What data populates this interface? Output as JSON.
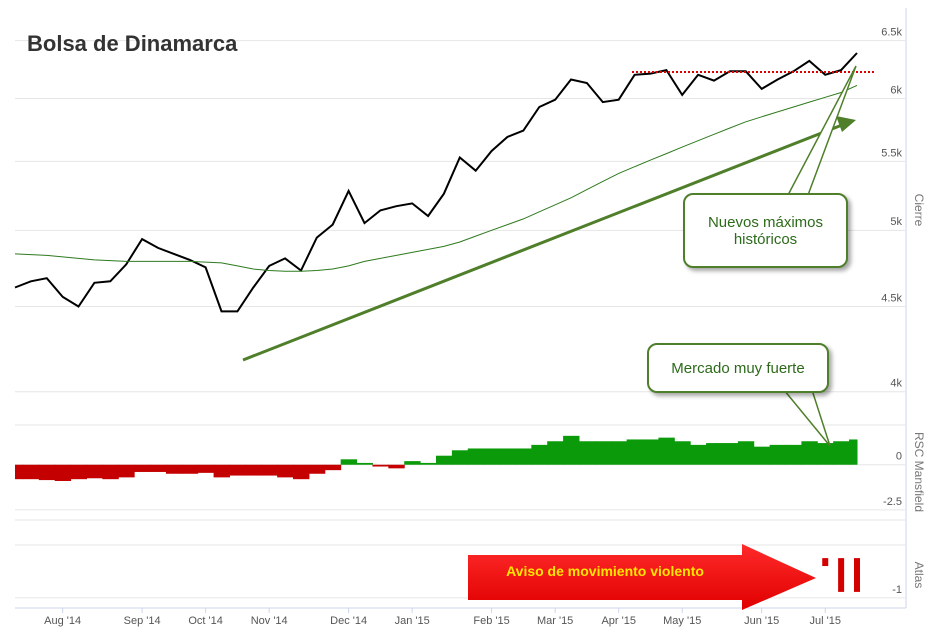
{
  "chart_data": [
    {
      "type": "line",
      "title": "Bolsa de Dinamarca",
      "y_label": "Cierre",
      "log_scale": true,
      "grid": true,
      "categories": [
        null,
        null,
        null,
        "Aug '14",
        null,
        null,
        null,
        null,
        "Sep '14",
        null,
        null,
        null,
        "Oct '14",
        null,
        null,
        null,
        "Nov '14",
        null,
        null,
        null,
        null,
        "Dec '14",
        null,
        null,
        null,
        "Jan '15",
        null,
        null,
        null,
        null,
        "Feb '15",
        null,
        null,
        null,
        "Mar '15",
        null,
        null,
        null,
        "Apr '15",
        null,
        null,
        null,
        "May '15",
        null,
        null,
        null,
        null,
        "Jun '15",
        null,
        null,
        null,
        "Jul '15",
        null,
        null
      ],
      "series": [
        {
          "color": "#000000",
          "values": [
            4620,
            4660,
            4680,
            4560,
            4500,
            4650,
            4660,
            4770,
            4940,
            4880,
            4840,
            4800,
            4750,
            4470,
            4470,
            4620,
            4760,
            4810,
            4730,
            4950,
            5040,
            5280,
            5050,
            5140,
            5170,
            5190,
            5100,
            5260,
            5530,
            5430,
            5580,
            5690,
            5740,
            5930,
            5990,
            6160,
            6130,
            5970,
            5990,
            6200,
            6210,
            6240,
            6030,
            6200,
            6150,
            6230,
            6230,
            6080,
            6160,
            6230,
            6320,
            6200,
            6240,
            6390
          ]
        },
        {
          "color": "#2e7a1e",
          "values": [
            4840,
            4835,
            4830,
            4820,
            4810,
            4800,
            4795,
            4790,
            4790,
            4790,
            4790,
            4790,
            4785,
            4780,
            4760,
            4740,
            4730,
            4725,
            4725,
            4730,
            4740,
            4760,
            4790,
            4810,
            4830,
            4850,
            4870,
            4890,
            4920,
            4960,
            5000,
            5040,
            5080,
            5130,
            5180,
            5230,
            5290,
            5350,
            5410,
            5460,
            5510,
            5560,
            5610,
            5660,
            5710,
            5760,
            5810,
            5850,
            5890,
            5930,
            5970,
            6010,
            6050,
            6110
          ]
        }
      ],
      "ylim": [
        3900,
        6800
      ],
      "yticks": [
        {
          "value": 4000,
          "label": "4k"
        },
        {
          "value": 4500,
          "label": "4.5k"
        },
        {
          "value": 5000,
          "label": "5k"
        },
        {
          "value": 5500,
          "label": "5.5k"
        },
        {
          "value": 6000,
          "label": "6k"
        },
        {
          "value": 6500,
          "label": "6.5k"
        }
      ],
      "annotations": [
        "Nuevos máximos históricos",
        "Mercado muy fuerte"
      ]
    },
    {
      "type": "area",
      "y_label": "RSC Mansfield",
      "positive_color": "#0a9a0a",
      "negative_color": "#c40000",
      "values": [
        -0.8,
        -0.8,
        -0.85,
        -0.9,
        -0.8,
        -0.75,
        -0.8,
        -0.7,
        -0.4,
        -0.4,
        -0.5,
        -0.5,
        -0.45,
        -0.7,
        -0.6,
        -0.6,
        -0.6,
        -0.7,
        -0.8,
        -0.5,
        -0.3,
        0.3,
        0.1,
        -0.1,
        -0.2,
        0.2,
        0.1,
        0.5,
        0.8,
        0.9,
        0.9,
        0.9,
        0.9,
        1.1,
        1.3,
        1.6,
        1.3,
        1.3,
        1.3,
        1.4,
        1.4,
        1.5,
        1.3,
        1.1,
        1.2,
        1.2,
        1.3,
        1.0,
        1.1,
        1.1,
        1.3,
        1.2,
        1.3,
        1.4
      ],
      "ylim": [
        -3.06,
        2.2
      ],
      "yticks": [
        0,
        -2.5
      ]
    },
    {
      "type": "bar",
      "y_label": "Atlas",
      "color": "#d40000",
      "values": [
        0,
        0,
        0,
        0,
        0,
        0,
        0,
        0,
        0,
        0,
        0,
        0,
        0,
        0,
        0,
        0,
        0,
        0,
        0,
        0,
        0,
        0,
        0,
        0,
        0,
        0,
        0,
        0,
        0,
        0,
        0,
        0,
        0,
        0,
        0,
        0,
        0,
        0,
        0,
        0,
        0,
        0,
        0,
        0,
        0,
        0,
        0,
        0,
        0,
        0,
        0,
        -0.2,
        -0.85,
        -0.85
      ],
      "ylim": [
        -1.18,
        0.33
      ],
      "yticks": [
        -1
      ],
      "annotation": "Aviso de movimiento violento"
    }
  ]
}
